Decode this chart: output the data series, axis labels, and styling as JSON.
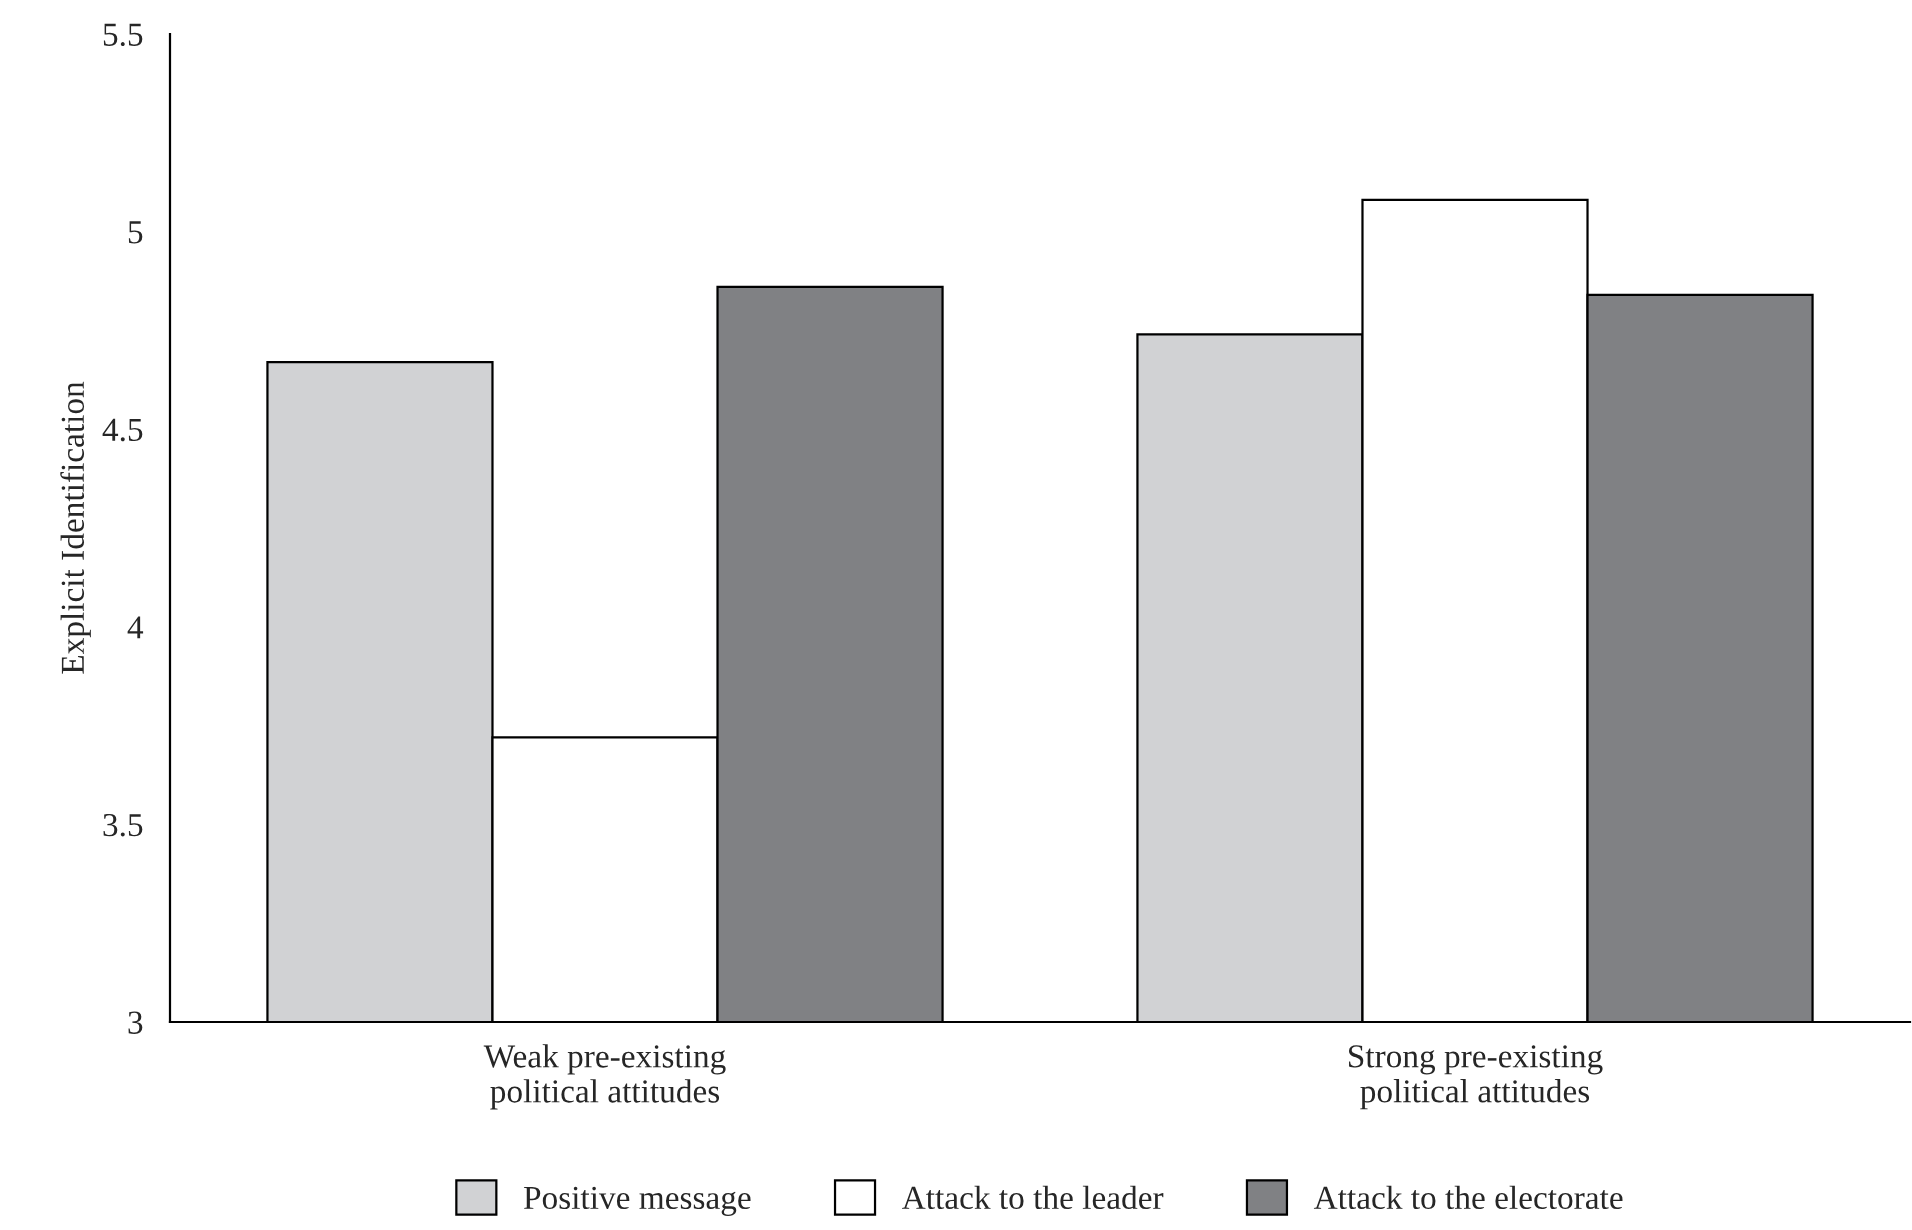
{
  "chart_data": {
    "type": "bar",
    "ylabel": "Explicit Identification",
    "categories": [
      "Weak pre-existing\npolitical attitudes",
      "Strong pre-existing\npolitical attitudes"
    ],
    "series": [
      {
        "name": "Positive message",
        "color": "#d1d2d4",
        "values": [
          4.67,
          4.74
        ]
      },
      {
        "name": "Attack to the leader",
        "color": "#ffffff",
        "values": [
          3.72,
          5.08
        ]
      },
      {
        "name": "Attack to the electorate",
        "color": "#808184",
        "values": [
          4.86,
          4.84
        ]
      }
    ],
    "ylim": [
      3,
      5.5
    ],
    "yticks": [
      3,
      3.5,
      4,
      4.5,
      5,
      5.5
    ],
    "legend": "bottom",
    "grid": false
  }
}
